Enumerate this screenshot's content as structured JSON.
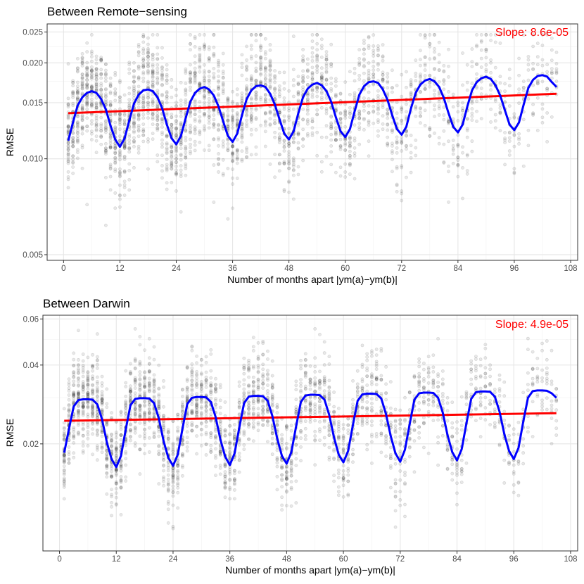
{
  "chart_data": [
    {
      "type": "scatter",
      "title": "Between Remote−sensing",
      "xlabel": "Number of months apart |ym(a)−ym(b)|",
      "ylabel": "RMSE",
      "y_scale": "log10",
      "xlim": [
        -3.5,
        109.5
      ],
      "ylim": [
        0.0048,
        0.0265
      ],
      "x_ticks": [
        0,
        12,
        24,
        36,
        48,
        60,
        72,
        84,
        96,
        108
      ],
      "x_tick_labels": [
        "0",
        "12",
        "24",
        "36",
        "48",
        "60",
        "72",
        "84",
        "96",
        "108"
      ],
      "y_ticks": [
        0.005,
        0.01,
        0.015,
        0.02,
        0.025
      ],
      "y_tick_labels": [
        "0.005",
        "0.010",
        "0.015",
        "0.020",
        "0.025"
      ],
      "grid": true,
      "annotation": "Slope: 8.6e-05",
      "scatter_description": "Grey semi-transparent points, one per pair of scenes; vertical strips at each month lag from 1 to 105",
      "point_band": {
        "center_min": 0.0105,
        "center_max": 0.0175,
        "spread_low": 0.006,
        "spread_high": 0.0245
      },
      "series": [
        {
          "name": "seasonal smooth",
          "color": "#0000ff",
          "x": [
            1,
            2,
            3,
            4,
            5,
            6,
            7,
            8,
            9,
            10,
            11,
            12,
            13,
            14,
            15,
            16,
            17,
            18,
            19,
            20,
            21,
            22,
            23,
            24,
            25,
            26,
            27,
            28,
            29,
            30,
            31,
            32,
            33,
            34,
            35,
            36,
            37,
            38,
            39,
            40,
            41,
            42,
            43,
            44,
            45,
            46,
            47,
            48,
            49,
            50,
            51,
            52,
            53,
            54,
            55,
            56,
            57,
            58,
            59,
            60,
            61,
            62,
            63,
            64,
            65,
            66,
            67,
            68,
            69,
            70,
            71,
            72,
            73,
            74,
            75,
            76,
            77,
            78,
            79,
            80,
            81,
            82,
            83,
            84,
            85,
            86,
            87,
            88,
            89,
            90,
            91,
            92,
            93,
            94,
            95,
            96,
            97,
            98,
            99,
            100,
            101,
            102,
            103,
            104,
            105
          ],
          "values": [
            0.0114,
            0.013,
            0.0147,
            0.0156,
            0.0161,
            0.0163,
            0.0161,
            0.0154,
            0.0143,
            0.0127,
            0.0115,
            0.0109,
            0.0116,
            0.0132,
            0.0149,
            0.0159,
            0.0164,
            0.0165,
            0.0163,
            0.0156,
            0.0144,
            0.0128,
            0.0116,
            0.0111,
            0.0118,
            0.0134,
            0.0151,
            0.0161,
            0.0166,
            0.0168,
            0.0165,
            0.0158,
            0.0146,
            0.0131,
            0.0118,
            0.0113,
            0.012,
            0.0137,
            0.0154,
            0.0164,
            0.0169,
            0.017,
            0.0168,
            0.016,
            0.0148,
            0.0133,
            0.012,
            0.0115,
            0.0122,
            0.0139,
            0.0156,
            0.0166,
            0.0171,
            0.0173,
            0.017,
            0.0163,
            0.0151,
            0.0135,
            0.0122,
            0.0117,
            0.0124,
            0.0141,
            0.0159,
            0.0169,
            0.0174,
            0.0175,
            0.0173,
            0.0165,
            0.0153,
            0.0137,
            0.0124,
            0.0119,
            0.0126,
            0.0144,
            0.0161,
            0.0171,
            0.0176,
            0.0178,
            0.0175,
            0.0168,
            0.0155,
            0.0139,
            0.0126,
            0.0121,
            0.0128,
            0.0146,
            0.0164,
            0.0174,
            0.0179,
            0.0181,
            0.0178,
            0.017,
            0.0158,
            0.0142,
            0.0128,
            0.0123,
            0.013,
            0.0148,
            0.0167,
            0.0177,
            0.0182,
            0.0183,
            0.0181,
            0.0174,
            0.0168
          ]
        },
        {
          "name": "linear trend",
          "color": "#ff0000",
          "x": [
            1,
            105
          ],
          "values": [
            0.0139,
            0.016
          ]
        }
      ]
    },
    {
      "type": "scatter",
      "title": "Between Darwin",
      "xlabel": "Number of months apart |ym(a)−ym(b)|",
      "ylabel": "RMSE",
      "y_scale": "log10",
      "xlim": [
        -3.5,
        109.5
      ],
      "ylim": [
        0.0078,
        0.062
      ],
      "x_ticks": [
        0,
        12,
        24,
        36,
        48,
        60,
        72,
        84,
        96,
        108
      ],
      "x_tick_labels": [
        "0",
        "12",
        "24",
        "36",
        "48",
        "60",
        "72",
        "84",
        "96",
        "108"
      ],
      "y_ticks": [
        0.02,
        0.04,
        0.06
      ],
      "y_tick_labels": [
        "0.02",
        "0.04",
        "0.06"
      ],
      "grid": true,
      "annotation": "Slope: 4.9e-05",
      "scatter_description": "Grey semi-transparent points, one per pair of scenes; vertical strips at each month lag from 1 to 105",
      "point_band": {
        "center_min": 0.016,
        "center_max": 0.031,
        "spread_low": 0.0095,
        "spread_high": 0.055
      },
      "series": [
        {
          "name": "seasonal smooth",
          "color": "#0000ff",
          "x": [
            1,
            2,
            3,
            4,
            5,
            6,
            7,
            8,
            9,
            10,
            11,
            12,
            13,
            14,
            15,
            16,
            17,
            18,
            19,
            20,
            21,
            22,
            23,
            24,
            25,
            26,
            27,
            28,
            29,
            30,
            31,
            32,
            33,
            34,
            35,
            36,
            37,
            38,
            39,
            40,
            41,
            42,
            43,
            44,
            45,
            46,
            47,
            48,
            49,
            50,
            51,
            52,
            53,
            54,
            55,
            56,
            57,
            58,
            59,
            60,
            61,
            62,
            63,
            64,
            65,
            66,
            67,
            68,
            69,
            70,
            71,
            72,
            73,
            74,
            75,
            76,
            77,
            78,
            79,
            80,
            81,
            82,
            83,
            84,
            85,
            86,
            87,
            88,
            89,
            90,
            91,
            92,
            93,
            94,
            95,
            96,
            97,
            98,
            99,
            100,
            101,
            102,
            103,
            104,
            105
          ],
          "values": [
            0.0185,
            0.0228,
            0.0278,
            0.0294,
            0.0296,
            0.0296,
            0.0295,
            0.0283,
            0.0248,
            0.0203,
            0.0175,
            0.0163,
            0.018,
            0.0227,
            0.0281,
            0.0297,
            0.0299,
            0.0299,
            0.0298,
            0.0286,
            0.025,
            0.0205,
            0.0177,
            0.0165,
            0.0182,
            0.0229,
            0.0284,
            0.03,
            0.0302,
            0.0302,
            0.0301,
            0.0289,
            0.0253,
            0.0208,
            0.0179,
            0.0166,
            0.0184,
            0.0231,
            0.0286,
            0.0303,
            0.0305,
            0.0305,
            0.0304,
            0.0292,
            0.0255,
            0.021,
            0.018,
            0.0168,
            0.0186,
            0.0233,
            0.0289,
            0.0306,
            0.0308,
            0.0308,
            0.0307,
            0.0295,
            0.0258,
            0.0212,
            0.0182,
            0.017,
            0.0188,
            0.0236,
            0.0292,
            0.0309,
            0.0311,
            0.0311,
            0.031,
            0.0298,
            0.026,
            0.0214,
            0.0184,
            0.0171,
            0.019,
            0.0238,
            0.0295,
            0.0312,
            0.0314,
            0.0314,
            0.0313,
            0.03,
            0.0263,
            0.0216,
            0.0186,
            0.0173,
            0.0191,
            0.024,
            0.0297,
            0.0315,
            0.0317,
            0.0317,
            0.0316,
            0.0303,
            0.0265,
            0.0218,
            0.0188,
            0.0175,
            0.0193,
            0.0243,
            0.03,
            0.0318,
            0.032,
            0.032,
            0.0319,
            0.0312,
            0.03
          ]
        },
        {
          "name": "linear trend",
          "color": "#ff0000",
          "x": [
            1,
            105
          ],
          "values": [
            0.0245,
            0.0262
          ]
        }
      ]
    }
  ],
  "colors": {
    "points": "#000000",
    "smooth": "#0000ff",
    "trend": "#ff0000",
    "grid": "#ebebeb",
    "panel_border": "#333333"
  }
}
